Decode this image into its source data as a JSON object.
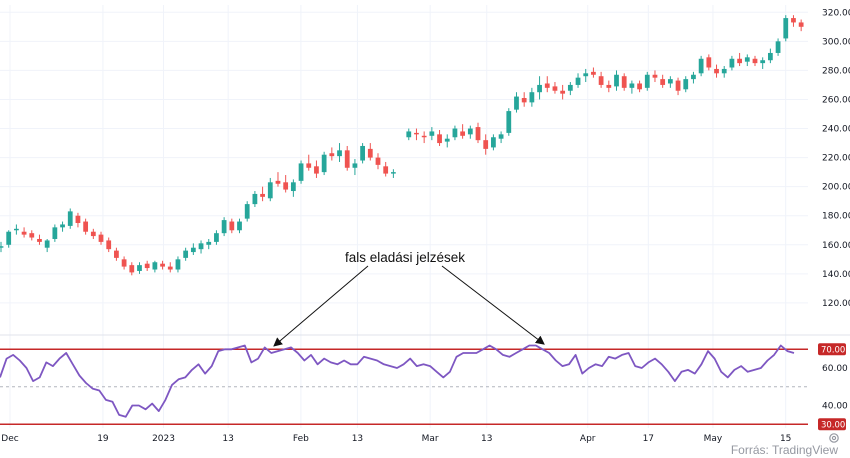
{
  "chart_data": [
    {
      "type": "candlestick",
      "ylim": [
        100,
        325
      ],
      "y_ticks": [
        "120.00",
        "140.00",
        "160.00",
        "180.00",
        "200.00",
        "220.00",
        "240.00",
        "260.00",
        "280.00",
        "300.00",
        "320.00"
      ],
      "colors": {
        "up": "#26a69a",
        "down": "#ef5350"
      },
      "candles": [
        {
          "o": 158,
          "h": 162,
          "l": 155,
          "c": 159
        },
        {
          "o": 160,
          "h": 170,
          "l": 158,
          "c": 169
        },
        {
          "o": 170,
          "h": 174,
          "l": 167,
          "c": 171
        },
        {
          "o": 169,
          "h": 172,
          "l": 165,
          "c": 167
        },
        {
          "o": 168,
          "h": 170,
          "l": 163,
          "c": 165
        },
        {
          "o": 164,
          "h": 167,
          "l": 160,
          "c": 162
        },
        {
          "o": 158,
          "h": 164,
          "l": 155,
          "c": 163
        },
        {
          "o": 164,
          "h": 174,
          "l": 162,
          "c": 172
        },
        {
          "o": 172,
          "h": 176,
          "l": 169,
          "c": 174
        },
        {
          "o": 173,
          "h": 185,
          "l": 171,
          "c": 183
        },
        {
          "o": 180,
          "h": 182,
          "l": 172,
          "c": 175
        },
        {
          "o": 176,
          "h": 178,
          "l": 167,
          "c": 169
        },
        {
          "o": 169,
          "h": 171,
          "l": 164,
          "c": 166
        },
        {
          "o": 167,
          "h": 169,
          "l": 160,
          "c": 162
        },
        {
          "o": 163,
          "h": 165,
          "l": 155,
          "c": 157
        },
        {
          "o": 156,
          "h": 158,
          "l": 149,
          "c": 151
        },
        {
          "o": 150,
          "h": 152,
          "l": 143,
          "c": 145
        },
        {
          "o": 146,
          "h": 148,
          "l": 139,
          "c": 141
        },
        {
          "o": 142,
          "h": 148,
          "l": 140,
          "c": 146
        },
        {
          "o": 147,
          "h": 149,
          "l": 142,
          "c": 144
        },
        {
          "o": 143,
          "h": 149,
          "l": 141,
          "c": 148
        },
        {
          "o": 147,
          "h": 149,
          "l": 143,
          "c": 145
        },
        {
          "o": 145,
          "h": 148,
          "l": 141,
          "c": 143
        },
        {
          "o": 143,
          "h": 152,
          "l": 141,
          "c": 150
        },
        {
          "o": 151,
          "h": 158,
          "l": 149,
          "c": 156
        },
        {
          "o": 155,
          "h": 161,
          "l": 153,
          "c": 158
        },
        {
          "o": 157,
          "h": 163,
          "l": 154,
          "c": 161
        },
        {
          "o": 160,
          "h": 164,
          "l": 157,
          "c": 162
        },
        {
          "o": 162,
          "h": 170,
          "l": 160,
          "c": 168
        },
        {
          "o": 168,
          "h": 179,
          "l": 166,
          "c": 177
        },
        {
          "o": 176,
          "h": 178,
          "l": 168,
          "c": 170
        },
        {
          "o": 170,
          "h": 178,
          "l": 168,
          "c": 176
        },
        {
          "o": 178,
          "h": 190,
          "l": 176,
          "c": 188
        },
        {
          "o": 188,
          "h": 197,
          "l": 186,
          "c": 195
        },
        {
          "o": 195,
          "h": 200,
          "l": 190,
          "c": 193
        },
        {
          "o": 192,
          "h": 206,
          "l": 190,
          "c": 203
        },
        {
          "o": 204,
          "h": 210,
          "l": 200,
          "c": 202
        },
        {
          "o": 203,
          "h": 208,
          "l": 196,
          "c": 198
        },
        {
          "o": 197,
          "h": 205,
          "l": 193,
          "c": 203
        },
        {
          "o": 204,
          "h": 218,
          "l": 202,
          "c": 216
        },
        {
          "o": 216,
          "h": 222,
          "l": 211,
          "c": 213
        },
        {
          "o": 214,
          "h": 218,
          "l": 206,
          "c": 209
        },
        {
          "o": 210,
          "h": 224,
          "l": 208,
          "c": 222
        },
        {
          "o": 223,
          "h": 227,
          "l": 218,
          "c": 221
        },
        {
          "o": 221,
          "h": 230,
          "l": 217,
          "c": 225
        },
        {
          "o": 225,
          "h": 228,
          "l": 211,
          "c": 213
        },
        {
          "o": 213,
          "h": 219,
          "l": 208,
          "c": 216
        },
        {
          "o": 218,
          "h": 230,
          "l": 216,
          "c": 228
        },
        {
          "o": 226,
          "h": 230,
          "l": 218,
          "c": 220
        },
        {
          "o": 220,
          "h": 223,
          "l": 212,
          "c": 215
        },
        {
          "o": 214,
          "h": 217,
          "l": 207,
          "c": 209
        },
        {
          "o": 209,
          "h": 212,
          "l": 206,
          "c": 210
        },
        null,
        {
          "o": 234,
          "h": 240,
          "l": 232,
          "c": 238
        },
        {
          "o": 237,
          "h": 240,
          "l": 232,
          "c": 236
        },
        {
          "o": 235,
          "h": 238,
          "l": 230,
          "c": 234
        },
        {
          "o": 235,
          "h": 241,
          "l": 232,
          "c": 238
        },
        {
          "o": 236,
          "h": 239,
          "l": 228,
          "c": 230
        },
        {
          "o": 231,
          "h": 236,
          "l": 227,
          "c": 233
        },
        {
          "o": 234,
          "h": 242,
          "l": 232,
          "c": 240
        },
        {
          "o": 238,
          "h": 243,
          "l": 233,
          "c": 235
        },
        {
          "o": 236,
          "h": 242,
          "l": 233,
          "c": 240
        },
        {
          "o": 241,
          "h": 244,
          "l": 230,
          "c": 232
        },
        {
          "o": 232,
          "h": 236,
          "l": 222,
          "c": 226
        },
        {
          "o": 227,
          "h": 236,
          "l": 225,
          "c": 234
        },
        {
          "o": 233,
          "h": 238,
          "l": 230,
          "c": 236
        },
        {
          "o": 237,
          "h": 254,
          "l": 235,
          "c": 252
        },
        {
          "o": 253,
          "h": 265,
          "l": 251,
          "c": 262
        },
        {
          "o": 261,
          "h": 265,
          "l": 255,
          "c": 258
        },
        {
          "o": 258,
          "h": 268,
          "l": 255,
          "c": 265
        },
        {
          "o": 265,
          "h": 276,
          "l": 260,
          "c": 270
        },
        {
          "o": 271,
          "h": 276,
          "l": 265,
          "c": 268
        },
        {
          "o": 269,
          "h": 272,
          "l": 264,
          "c": 266
        },
        {
          "o": 266,
          "h": 270,
          "l": 260,
          "c": 264
        },
        {
          "o": 266,
          "h": 272,
          "l": 263,
          "c": 270
        },
        {
          "o": 270,
          "h": 278,
          "l": 268,
          "c": 275
        },
        {
          "o": 276,
          "h": 281,
          "l": 272,
          "c": 278
        },
        {
          "o": 279,
          "h": 282,
          "l": 275,
          "c": 277
        },
        {
          "o": 276,
          "h": 279,
          "l": 268,
          "c": 270
        },
        {
          "o": 270,
          "h": 273,
          "l": 265,
          "c": 268
        },
        {
          "o": 269,
          "h": 280,
          "l": 266,
          "c": 277
        },
        {
          "o": 276,
          "h": 278,
          "l": 266,
          "c": 268
        },
        {
          "o": 268,
          "h": 273,
          "l": 264,
          "c": 271
        },
        {
          "o": 271,
          "h": 273,
          "l": 265,
          "c": 267
        },
        {
          "o": 268,
          "h": 279,
          "l": 266,
          "c": 277
        },
        {
          "o": 277,
          "h": 280,
          "l": 272,
          "c": 275
        },
        {
          "o": 274,
          "h": 277,
          "l": 268,
          "c": 270
        },
        {
          "o": 271,
          "h": 276,
          "l": 268,
          "c": 274
        },
        {
          "o": 273,
          "h": 275,
          "l": 263,
          "c": 266
        },
        {
          "o": 267,
          "h": 276,
          "l": 265,
          "c": 274
        },
        {
          "o": 274,
          "h": 279,
          "l": 271,
          "c": 277
        },
        {
          "o": 278,
          "h": 290,
          "l": 276,
          "c": 288
        },
        {
          "o": 289,
          "h": 291,
          "l": 280,
          "c": 282
        },
        {
          "o": 281,
          "h": 284,
          "l": 275,
          "c": 278
        },
        {
          "o": 278,
          "h": 283,
          "l": 275,
          "c": 281
        },
        {
          "o": 282,
          "h": 290,
          "l": 280,
          "c": 288
        },
        {
          "o": 288,
          "h": 292,
          "l": 283,
          "c": 285
        },
        {
          "o": 286,
          "h": 291,
          "l": 283,
          "c": 289
        },
        {
          "o": 288,
          "h": 290,
          "l": 283,
          "c": 285
        },
        {
          "o": 285,
          "h": 289,
          "l": 281,
          "c": 287
        },
        {
          "o": 287,
          "h": 295,
          "l": 285,
          "c": 292
        },
        {
          "o": 292,
          "h": 302,
          "l": 290,
          "c": 300
        },
        {
          "o": 302,
          "h": 318,
          "l": 300,
          "c": 316
        },
        {
          "o": 316,
          "h": 318,
          "l": 310,
          "c": 313
        },
        {
          "o": 313,
          "h": 315,
          "l": 307,
          "c": 310
        }
      ]
    },
    {
      "type": "line",
      "ylim": [
        28,
        76
      ],
      "y_ticks": [
        "40.00",
        "60.00"
      ],
      "levels": {
        "upper": {
          "value": 70,
          "label": "70.00"
        },
        "lower": {
          "value": 30,
          "label": "30.00"
        },
        "mid": {
          "value": 50
        }
      },
      "colors": {
        "line": "#7e57c2",
        "level": "#c62828"
      },
      "values": [
        55,
        65,
        67,
        64,
        60,
        53,
        55,
        63,
        61,
        65,
        68,
        62,
        56,
        52,
        49,
        48,
        43,
        42,
        35,
        34,
        40,
        40,
        38,
        41,
        37,
        43,
        51,
        54,
        55,
        59,
        62,
        57,
        61,
        69,
        70,
        70,
        71,
        72,
        63,
        65,
        71,
        68,
        69,
        70,
        71,
        68,
        64,
        67,
        62,
        65,
        63,
        62,
        64,
        62,
        62,
        66,
        65,
        64,
        62,
        61,
        60,
        62,
        65,
        61,
        62,
        61,
        58,
        55,
        58,
        66,
        68,
        68,
        68,
        70,
        72,
        70,
        67,
        66,
        68,
        70,
        72,
        72,
        70,
        68,
        64,
        61,
        62,
        67,
        57,
        60,
        62,
        61,
        66,
        65,
        67,
        68,
        61,
        60,
        63,
        65,
        62,
        58,
        53,
        58,
        59,
        57,
        62,
        69,
        65,
        58,
        55,
        59,
        61,
        58,
        59,
        60,
        64,
        67,
        72,
        69,
        68
      ]
    }
  ],
  "x_ticks": [
    {
      "label": "Dec",
      "x": 0
    },
    {
      "label": "19",
      "x": 11.5
    },
    {
      "label": "2023",
      "x": 19
    },
    {
      "label": "13",
      "x": 27
    },
    {
      "label": "Feb",
      "x": 36
    },
    {
      "label": "13",
      "x": 43
    },
    {
      "label": "Mar",
      "x": 52
    },
    {
      "label": "13",
      "x": 59
    },
    {
      "label": "Apr",
      "x": 71.5
    },
    {
      "label": "17",
      "x": 79
    },
    {
      "label": "May",
      "x": 87
    },
    {
      "label": "15",
      "x": 96
    }
  ],
  "annotation": {
    "text": "fals eladási jelzések",
    "targets": [
      {
        "x": 34,
        "value": 71
      },
      {
        "x": 66,
        "value": 72
      }
    ]
  },
  "source_label": "Forrás: TradingView",
  "settings_icon": "gear-icon"
}
